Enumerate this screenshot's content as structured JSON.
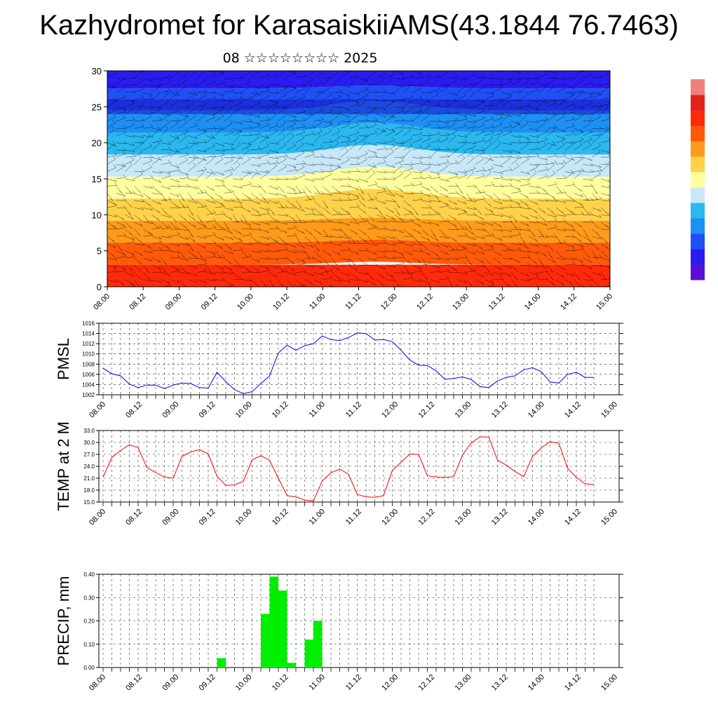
{
  "title": "Kazhydromet for KarasaiskiiAMS(43.1844 76.7463)",
  "subtitle": "08 ☆☆☆☆☆☆☆☆ 2025",
  "colorbar": {
    "colors_bottom_to_top": [
      "#5a0fd8",
      "#2a1cf0",
      "#1e50f5",
      "#1e8ff3",
      "#2ab8ef",
      "#c8e8f8",
      "#ffffa0",
      "#ffd24a",
      "#ff9a1a",
      "#ff5a0a",
      "#ff2a0a",
      "#e0231a",
      "#f08080"
    ]
  },
  "chart_data": [
    {
      "type": "heatmap",
      "name": "cross-section",
      "ylim": [
        0,
        30
      ],
      "yticks": [
        "0",
        "5",
        "10",
        "15",
        "20",
        "25",
        "30"
      ],
      "xtick_labels": [
        "08.00",
        "08.12",
        "09.00",
        "09.12",
        "10.00",
        "10.12",
        "11.00",
        "11.12",
        "12.00",
        "12.12",
        "13.00",
        "13.12",
        "14.00",
        "14.12",
        "15.00"
      ],
      "layers_color_bottom_to_top": [
        "#ff2a0a",
        "#ff5a0a",
        "#ff9a1a",
        "#ffd24a",
        "#ffffa0",
        "#c8e8f8",
        "#2ab8ef",
        "#1e8ff3",
        "#1e50f5",
        "#2a1cf0",
        "#7a35e8"
      ],
      "overlay": "wind barbs"
    },
    {
      "type": "line",
      "name": "pmsl",
      "ylabel": "PMSL",
      "ylim": [
        1002,
        1016
      ],
      "yticks": [
        "1002",
        "1004",
        "1006",
        "1008",
        "1010",
        "1012",
        "1014",
        "1016"
      ],
      "xtick_labels": [
        "08.00",
        "08.12",
        "09.00",
        "09.12",
        "10.00",
        "10.12",
        "11.00",
        "11.12",
        "12.00",
        "12.12",
        "13.00",
        "13.12",
        "14.00",
        "14.12",
        "15.00"
      ],
      "color": "#0000ff",
      "values": [
        1007.2,
        1006.1,
        1005.7,
        1004.1,
        1003.4,
        1003.9,
        1003.9,
        1003.2,
        1003.9,
        1004.3,
        1004.2,
        1003.4,
        1003.3,
        1006.4,
        1004.6,
        1003.0,
        1002.2,
        1002.6,
        1004.2,
        1005.7,
        1010.2,
        1011.7,
        1010.7,
        1011.6,
        1012.0,
        1013.5,
        1012.8,
        1012.6,
        1013.2,
        1014.1,
        1014.0,
        1012.7,
        1012.8,
        1012.4,
        1010.7,
        1008.8,
        1007.8,
        1007.7,
        1006.7,
        1005.0,
        1005.2,
        1005.5,
        1005.0,
        1003.6,
        1003.4,
        1004.7,
        1005.4,
        1005.7,
        1006.9,
        1007.3,
        1006.5,
        1004.5,
        1004.3,
        1006.0,
        1006.4,
        1005.4,
        1005.4
      ]
    },
    {
      "type": "line",
      "name": "temp",
      "ylabel": "TEMP at 2 M",
      "ylim": [
        15,
        33
      ],
      "yticks": [
        "15.0",
        "18.0",
        "21.0",
        "24.0",
        "27.0",
        "30.0",
        "33.0"
      ],
      "xtick_labels": [
        "08.00",
        "08.12",
        "09.00",
        "09.12",
        "10.00",
        "10.12",
        "11.00",
        "11.12",
        "12.00",
        "12.12",
        "13.00",
        "13.12",
        "14.00",
        "14.12",
        "15.00"
      ],
      "color": "#ff0000",
      "values": [
        21.3,
        26.2,
        28.0,
        29.4,
        28.7,
        23.7,
        22.4,
        21.3,
        21.0,
        26.5,
        27.6,
        28.2,
        27.1,
        21.5,
        19.2,
        19.3,
        20.2,
        25.6,
        26.7,
        25.5,
        21.0,
        16.6,
        16.3,
        15.5,
        15.3,
        20.3,
        22.4,
        23.3,
        22.0,
        16.9,
        16.3,
        16.2,
        16.6,
        23.0,
        25.0,
        27.1,
        27.0,
        21.6,
        21.3,
        21.2,
        21.4,
        26.8,
        29.9,
        31.4,
        31.4,
        25.5,
        24.3,
        22.7,
        21.4,
        26.5,
        28.6,
        30.2,
        29.8,
        23.5,
        21.2,
        19.6,
        19.4
      ]
    },
    {
      "type": "bar",
      "name": "precip",
      "ylabel": "PRECIP, mm",
      "ylim": [
        0,
        0.4
      ],
      "yticks": [
        "0.00",
        "0.10",
        "0.20",
        "0.30",
        "0.40"
      ],
      "xtick_labels": [
        "08.00",
        "08.12",
        "09.00",
        "09.12",
        "10.00",
        "10.12",
        "11.00",
        "11.12",
        "12.00",
        "12.12",
        "13.00",
        "13.12",
        "14.00",
        "14.12",
        "15.00"
      ],
      "color": "#00ee00",
      "values": [
        0,
        0,
        0,
        0,
        0,
        0,
        0,
        0,
        0,
        0,
        0,
        0,
        0,
        0.04,
        0,
        0,
        0,
        0,
        0.23,
        0.39,
        0.33,
        0.02,
        0,
        0.12,
        0.2,
        0,
        0,
        0,
        0,
        0,
        0,
        0,
        0,
        0,
        0,
        0,
        0,
        0,
        0,
        0,
        0,
        0,
        0,
        0,
        0,
        0,
        0,
        0,
        0,
        0,
        0,
        0,
        0,
        0,
        0,
        0,
        0
      ]
    }
  ]
}
